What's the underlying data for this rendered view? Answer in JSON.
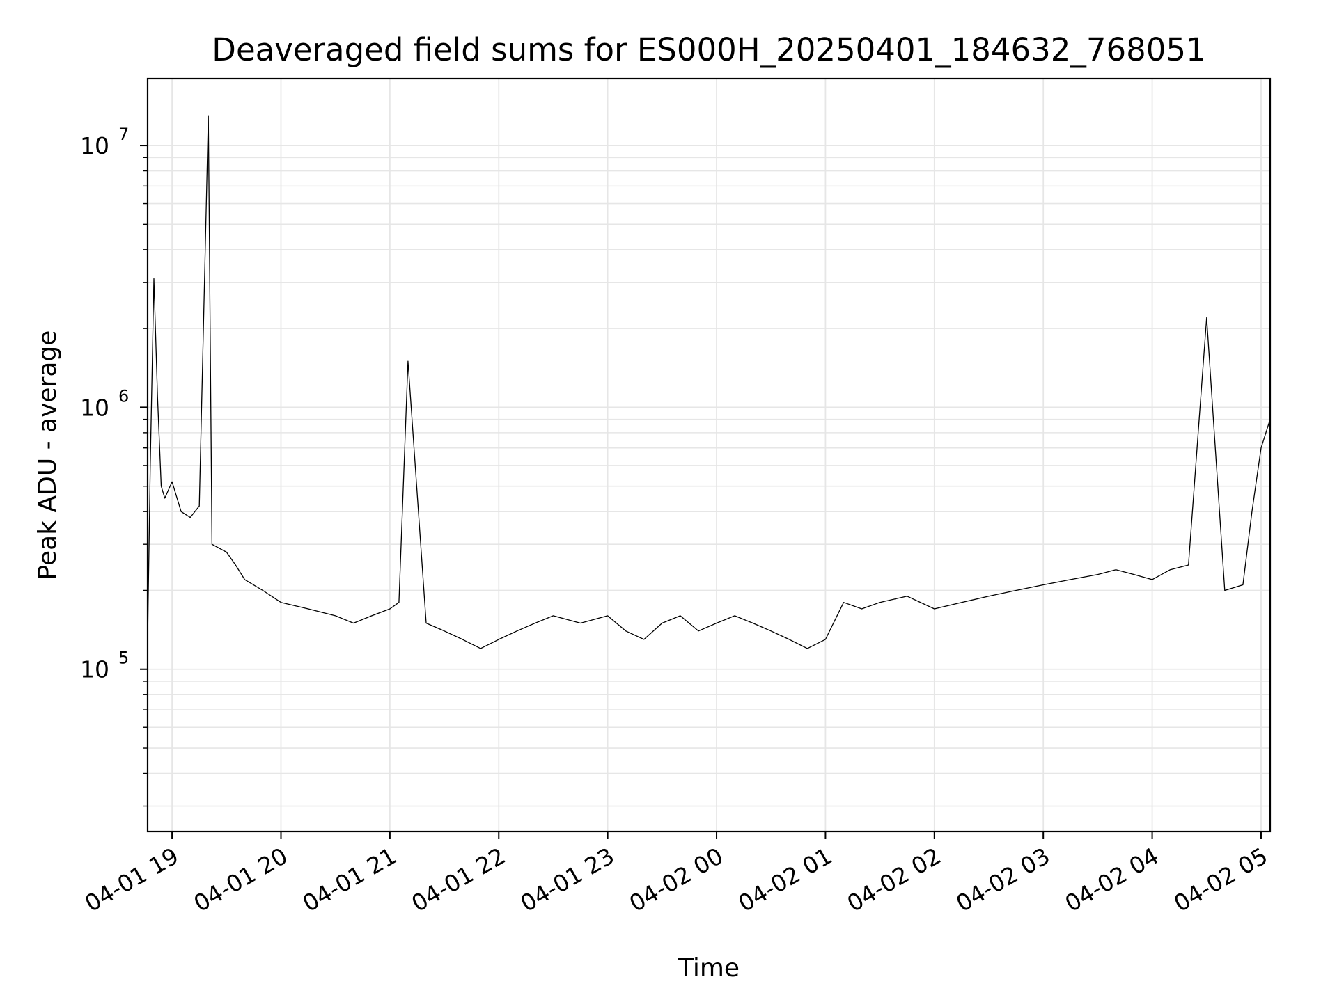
{
  "chart_data": {
    "type": "line",
    "title": "Deaveraged field sums for ES000H_20250401_184632_768051",
    "xlabel": "Time",
    "ylabel": "Peak ADU - average",
    "yscale": "log",
    "xlim": [
      "2025-04-01T18:46:32",
      "2025-04-02T05:05:00"
    ],
    "ylim": [
      24000,
      18000000
    ],
    "grid": true,
    "line_color": "#000000",
    "grid_color": "#e6e6e6",
    "x_ticks": [
      {
        "value": "2025-04-01T19:00:00",
        "label": "04-01 19"
      },
      {
        "value": "2025-04-01T20:00:00",
        "label": "04-01 20"
      },
      {
        "value": "2025-04-01T21:00:00",
        "label": "04-01 21"
      },
      {
        "value": "2025-04-01T22:00:00",
        "label": "04-01 22"
      },
      {
        "value": "2025-04-01T23:00:00",
        "label": "04-01 23"
      },
      {
        "value": "2025-04-02T00:00:00",
        "label": "04-02 00"
      },
      {
        "value": "2025-04-02T01:00:00",
        "label": "04-02 01"
      },
      {
        "value": "2025-04-02T02:00:00",
        "label": "04-02 02"
      },
      {
        "value": "2025-04-02T03:00:00",
        "label": "04-02 03"
      },
      {
        "value": "2025-04-02T04:00:00",
        "label": "04-02 04"
      },
      {
        "value": "2025-04-02T05:00:00",
        "label": "04-02 05"
      }
    ],
    "y_ticks": [
      {
        "value": 100000,
        "base": "10",
        "exp": "5"
      },
      {
        "value": 1000000,
        "base": "10",
        "exp": "6"
      },
      {
        "value": 10000000,
        "base": "10",
        "exp": "7"
      }
    ],
    "series": [
      {
        "x": [
          "2025-04-01T18:46:32",
          "2025-04-01T18:48:00",
          "2025-04-01T18:50:00",
          "2025-04-01T18:52:00",
          "2025-04-01T18:54:00",
          "2025-04-01T18:56:00",
          "2025-04-01T19:00:00",
          "2025-04-01T19:05:00",
          "2025-04-01T19:10:00",
          "2025-04-01T19:15:00",
          "2025-04-01T19:20:00",
          "2025-04-01T19:22:00",
          "2025-04-01T19:30:00",
          "2025-04-01T19:35:00",
          "2025-04-01T19:40:00",
          "2025-04-01T19:50:00",
          "2025-04-01T20:00:00",
          "2025-04-01T20:15:00",
          "2025-04-01T20:30:00",
          "2025-04-01T20:40:00",
          "2025-04-01T20:50:00",
          "2025-04-01T21:00:00",
          "2025-04-01T21:05:00",
          "2025-04-01T21:10:00",
          "2025-04-01T21:20:00",
          "2025-04-01T21:30:00",
          "2025-04-01T21:40:00",
          "2025-04-01T21:50:00",
          "2025-04-01T22:00:00",
          "2025-04-01T22:10:00",
          "2025-04-01T22:20:00",
          "2025-04-01T22:30:00",
          "2025-04-01T22:45:00",
          "2025-04-01T23:00:00",
          "2025-04-01T23:10:00",
          "2025-04-01T23:20:00",
          "2025-04-01T23:30:00",
          "2025-04-01T23:40:00",
          "2025-04-01T23:50:00",
          "2025-04-02T00:00:00",
          "2025-04-02T00:10:00",
          "2025-04-02T00:20:00",
          "2025-04-02T00:30:00",
          "2025-04-02T00:40:00",
          "2025-04-02T00:50:00",
          "2025-04-02T01:00:00",
          "2025-04-02T01:10:00",
          "2025-04-02T01:20:00",
          "2025-04-02T01:30:00",
          "2025-04-02T01:45:00",
          "2025-04-02T02:00:00",
          "2025-04-02T02:15:00",
          "2025-04-02T02:30:00",
          "2025-04-02T02:45:00",
          "2025-04-02T03:00:00",
          "2025-04-02T03:15:00",
          "2025-04-02T03:30:00",
          "2025-04-02T03:40:00",
          "2025-04-02T03:50:00",
          "2025-04-02T04:00:00",
          "2025-04-02T04:10:00",
          "2025-04-02T04:20:00",
          "2025-04-02T04:30:00",
          "2025-04-02T04:40:00",
          "2025-04-02T04:50:00",
          "2025-04-02T04:55:00",
          "2025-04-02T05:00:00",
          "2025-04-02T05:05:00"
        ],
        "y": [
          130000,
          600000,
          3100000,
          1100000,
          500000,
          450000,
          520000,
          400000,
          380000,
          420000,
          13000000,
          300000,
          280000,
          250000,
          220000,
          200000,
          180000,
          170000,
          160000,
          150000,
          160000,
          170000,
          180000,
          1500000,
          150000,
          140000,
          130000,
          120000,
          130000,
          140000,
          150000,
          160000,
          150000,
          160000,
          140000,
          130000,
          150000,
          160000,
          140000,
          150000,
          160000,
          150000,
          140000,
          130000,
          120000,
          130000,
          180000,
          170000,
          180000,
          190000,
          170000,
          180000,
          190000,
          200000,
          210000,
          220000,
          230000,
          240000,
          230000,
          220000,
          240000,
          250000,
          2200000,
          200000,
          210000,
          400000,
          700000,
          900000
        ]
      }
    ]
  }
}
